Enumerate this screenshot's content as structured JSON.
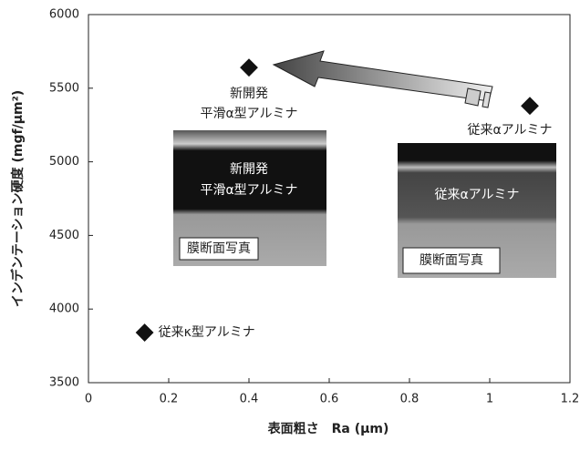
{
  "chart_data": {
    "type": "scatter",
    "xlabel": "表面粗さ　Ra (μm)",
    "ylabel": "インデンテーション硬度 (mgf/μm²)",
    "xlim": [
      0,
      1.2
    ],
    "xticks": [
      0,
      0.2,
      0.4,
      0.6,
      0.8,
      1,
      1.2
    ],
    "ylim": [
      3500,
      6000
    ],
    "yticks": [
      3500,
      4000,
      4500,
      5000,
      5500,
      6000
    ],
    "series": [
      {
        "color": "#111111",
        "x": [
          0.4,
          1.1,
          0.14
        ],
        "values": [
          5640,
          5380,
          3840
        ],
        "point_labels": [
          [
            "新開発",
            "平滑α型アルミナ"
          ],
          [
            "従来αアルミナ"
          ],
          [
            "従来κ型アルミナ"
          ]
        ]
      }
    ],
    "insets": [
      {
        "lines": [
          "新開発",
          "平滑α型アルミナ"
        ],
        "caption": "膜断面写真"
      },
      {
        "lines": [
          "従来αアルミナ"
        ],
        "caption": "膜断面写真"
      }
    ]
  }
}
